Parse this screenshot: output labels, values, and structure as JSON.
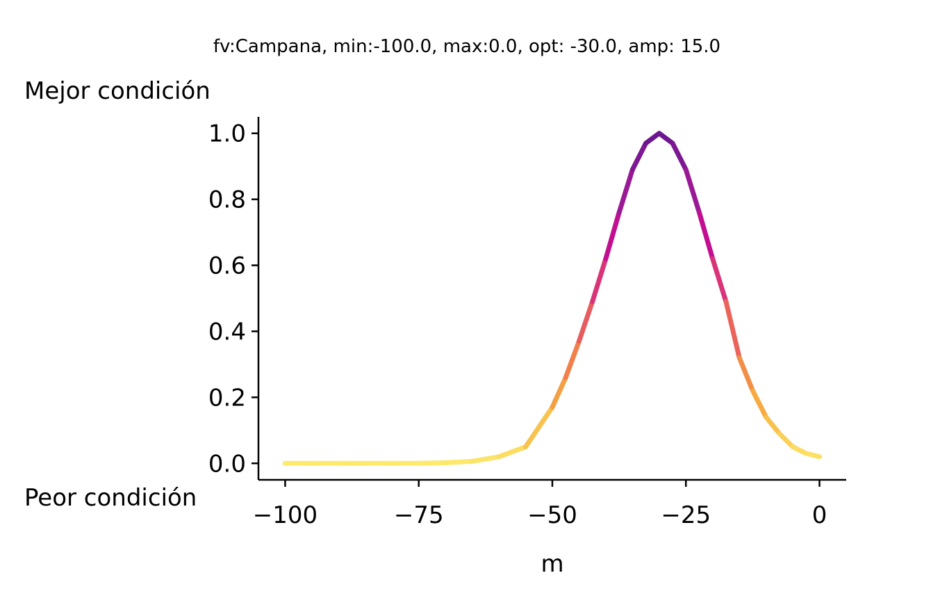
{
  "chart_data": {
    "type": "line",
    "title": "fv:Campana, min:-100.0, max:0.0, opt: -30.0, amp: 15.0",
    "xlabel": "m",
    "ylabel": "",
    "top_label": "Mejor condición",
    "bottom_label": "Peor condición",
    "xlim": [
      -105,
      5
    ],
    "ylim": [
      -0.05,
      1.05
    ],
    "xticks": [
      -100,
      -75,
      -50,
      -25,
      0
    ],
    "xtick_labels": [
      "−100",
      "−75",
      "−50",
      "−25",
      "0"
    ],
    "yticks": [
      0.0,
      0.2,
      0.4,
      0.6,
      0.8,
      1.0
    ],
    "ytick_labels": [
      "0.0",
      "0.2",
      "0.4",
      "0.6",
      "0.8",
      "1.0"
    ],
    "grid": false,
    "colormap": "plasma",
    "color_stops": [
      "#fde96b",
      "#f6ae3f",
      "#f07a4c",
      "#e1476d",
      "#c90d8f",
      "#961b94",
      "#6a168f"
    ],
    "series": [
      {
        "x": [
          -100,
          -95,
          -90,
          -85,
          -80,
          -75,
          -70,
          -65,
          -60,
          -55,
          -50,
          -47.5,
          -45,
          -42.5,
          -40,
          -37.5,
          -35,
          -32.5,
          -30,
          -27.5,
          -25,
          -22.5,
          -20,
          -17.5,
          -15,
          -12.5,
          -10,
          -7.5,
          -5,
          -2.5,
          0
        ],
        "values": [
          0.0,
          0.0,
          0.0,
          0.0,
          0.0,
          0.0,
          0.002,
          0.006,
          0.02,
          0.05,
          0.17,
          0.26,
          0.37,
          0.49,
          0.62,
          0.76,
          0.89,
          0.97,
          1.0,
          0.97,
          0.89,
          0.76,
          0.62,
          0.49,
          0.32,
          0.22,
          0.14,
          0.09,
          0.05,
          0.03,
          0.02
        ]
      }
    ]
  }
}
